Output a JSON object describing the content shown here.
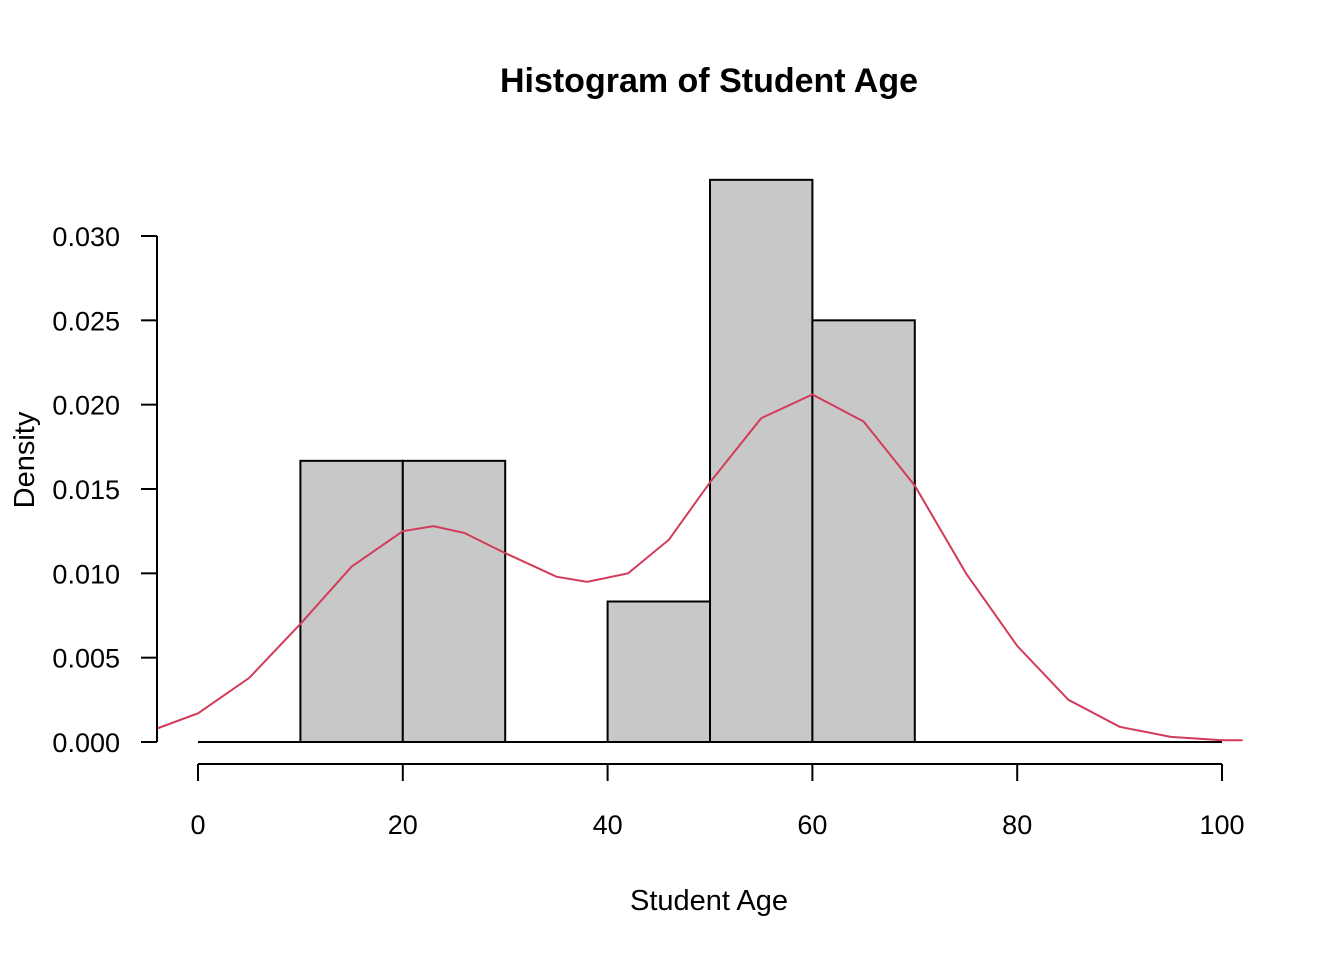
{
  "chart_data": {
    "type": "bar",
    "title": "Histogram of Student Age",
    "xlabel": "Student Age",
    "ylabel": "Density",
    "xlim": [
      -4,
      102
    ],
    "ylim": [
      0,
      0.0335
    ],
    "x_ticks": [
      0,
      20,
      40,
      60,
      80,
      100
    ],
    "y_ticks": [
      0.0,
      0.005,
      0.01,
      0.015,
      0.02,
      0.025,
      0.03
    ],
    "y_tick_labels": [
      "0.000",
      "0.005",
      "0.010",
      "0.015",
      "0.020",
      "0.025",
      "0.030"
    ],
    "bins": [
      {
        "x0": 0,
        "x1": 10,
        "density": 0.0
      },
      {
        "x0": 10,
        "x1": 20,
        "density": 0.01667
      },
      {
        "x0": 20,
        "x1": 30,
        "density": 0.01667
      },
      {
        "x0": 30,
        "x1": 40,
        "density": 0.0
      },
      {
        "x0": 40,
        "x1": 50,
        "density": 0.00833
      },
      {
        "x0": 50,
        "x1": 60,
        "density": 0.03333
      },
      {
        "x0": 60,
        "x1": 70,
        "density": 0.025
      },
      {
        "x0": 70,
        "x1": 80,
        "density": 0.0
      },
      {
        "x0": 80,
        "x1": 90,
        "density": 0.0
      },
      {
        "x0": 90,
        "x1": 100,
        "density": 0.0
      }
    ],
    "density_curve": {
      "color": "#d23b5a",
      "x": [
        -4,
        0,
        5,
        10,
        15,
        20,
        23,
        26,
        30,
        35,
        38,
        42,
        46,
        50,
        55,
        60,
        65,
        70,
        75,
        80,
        85,
        90,
        95,
        100,
        102
      ],
      "y": [
        0.0008,
        0.0017,
        0.0038,
        0.007,
        0.0104,
        0.0125,
        0.0128,
        0.0124,
        0.0112,
        0.0098,
        0.0095,
        0.01,
        0.012,
        0.0154,
        0.0192,
        0.0206,
        0.019,
        0.0152,
        0.01,
        0.0057,
        0.0025,
        0.0009,
        0.0003,
        0.0001,
        0.0001
      ]
    }
  }
}
